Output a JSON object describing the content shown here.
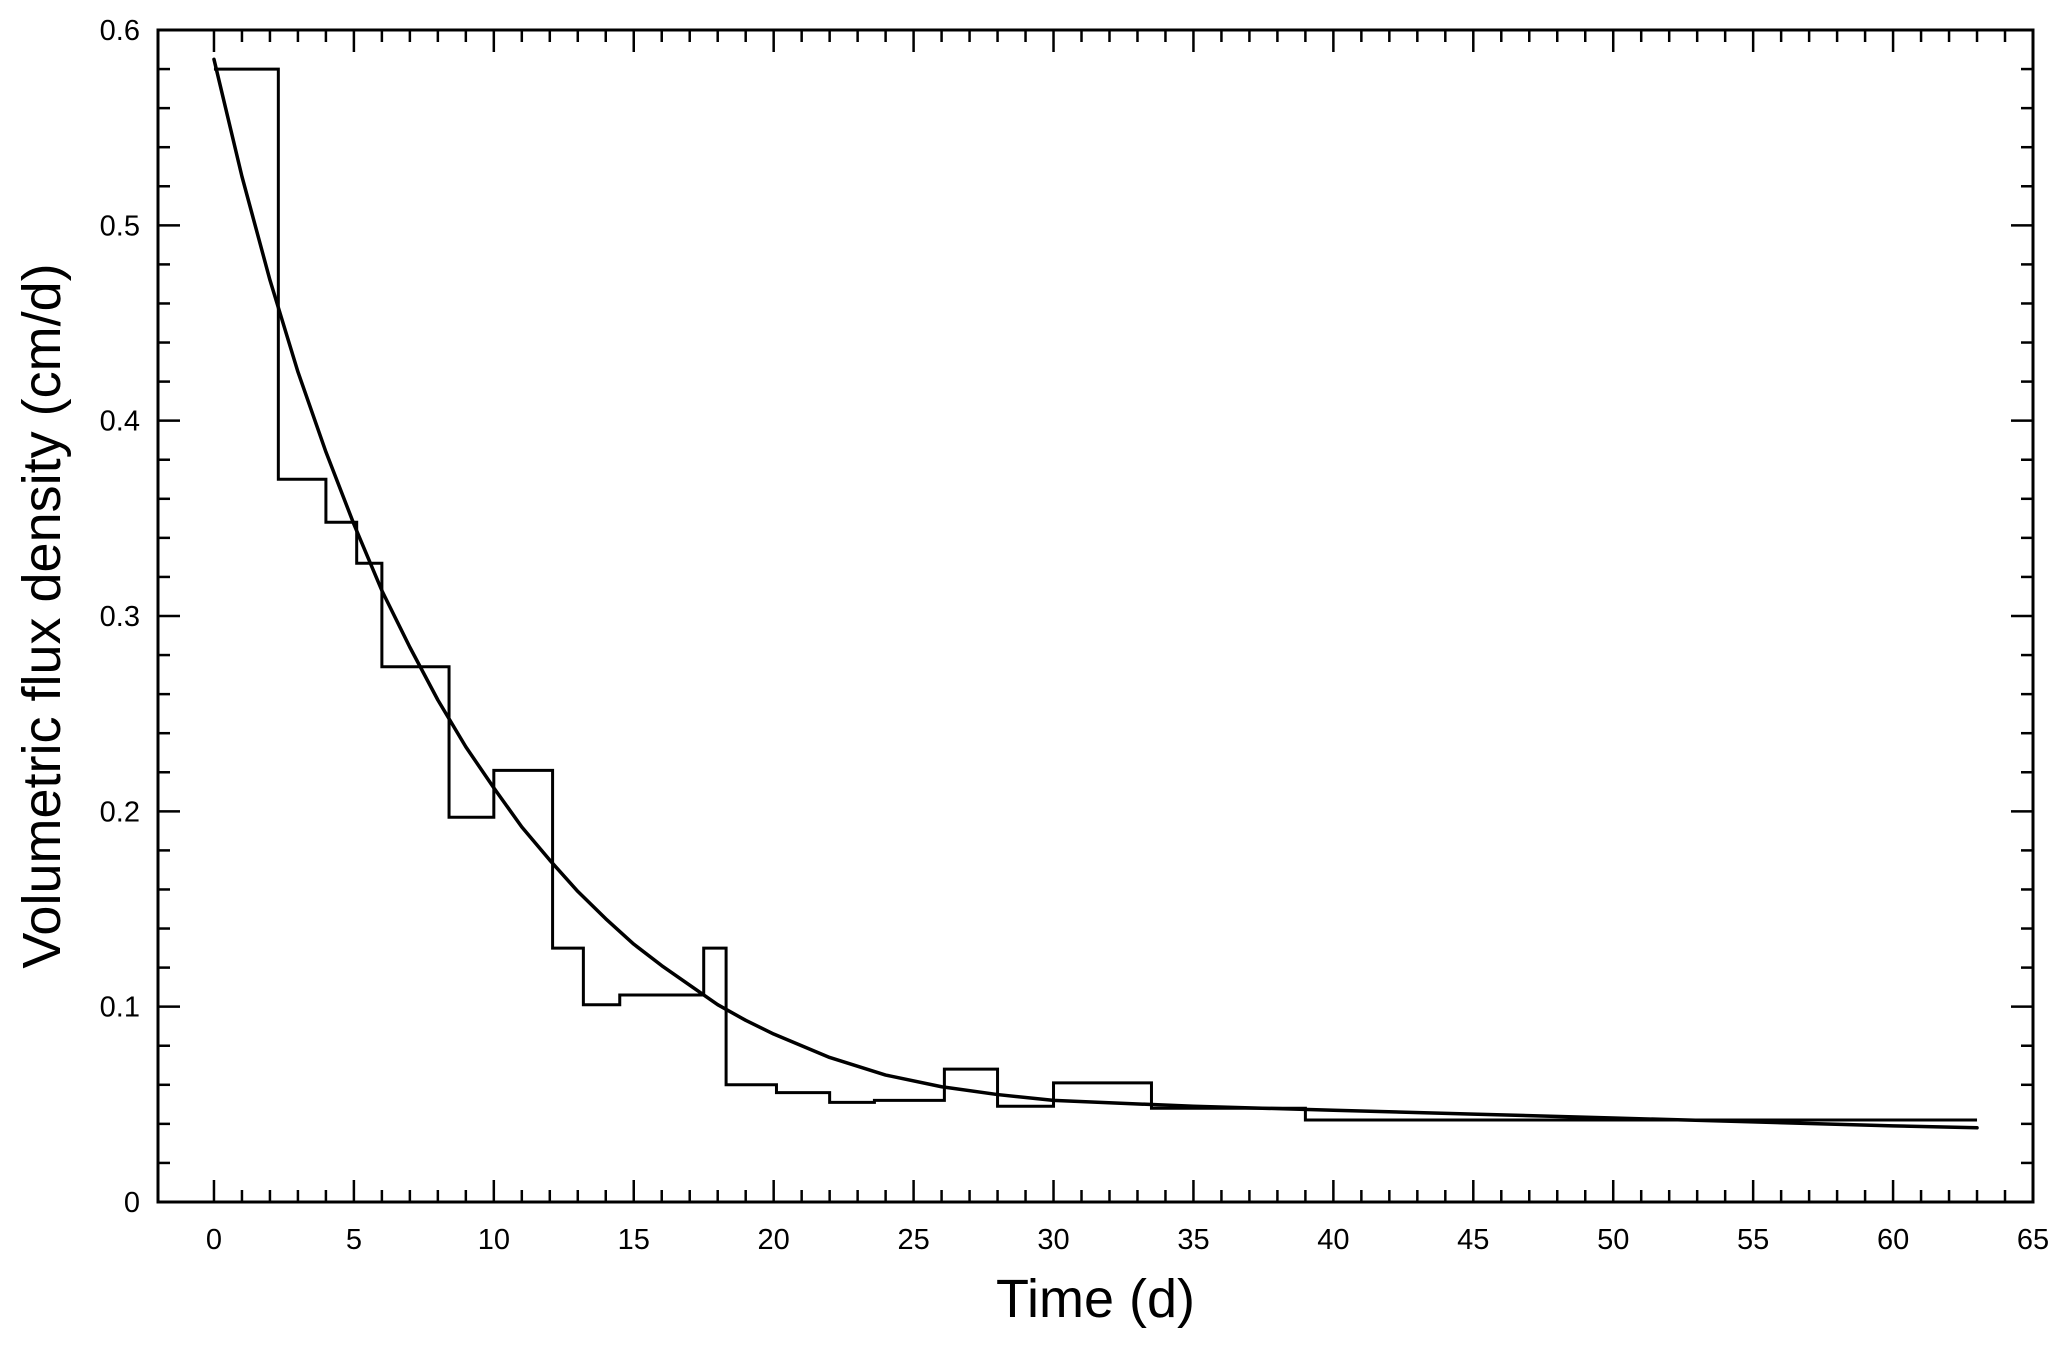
{
  "chart_data": {
    "type": "line",
    "title": "",
    "xlabel": "Time (d)",
    "ylabel": "Volumetric flux density (cm/d)",
    "xlim": [
      -2,
      65
    ],
    "ylim": [
      0,
      0.6
    ],
    "x_ticks": [
      0,
      5,
      10,
      15,
      20,
      25,
      30,
      35,
      40,
      45,
      50,
      55,
      60,
      65
    ],
    "x_tick_labels": [
      "0",
      "5",
      "10",
      "15",
      "20",
      "25",
      "30",
      "35",
      "40",
      "45",
      "50",
      "55",
      "60",
      "65"
    ],
    "x_minor_step": 1,
    "y_ticks": [
      0,
      0.1,
      0.2,
      0.3,
      0.4,
      0.5,
      0.6
    ],
    "y_tick_labels": [
      "0",
      "0.1",
      "0.2",
      "0.3",
      "0.4",
      "0.5",
      "0.6"
    ],
    "y_minor_step": 0.02,
    "grid": false,
    "legend": "none",
    "line_color": "#000000",
    "series": [
      {
        "style": "step",
        "edges": [
          0,
          2.3,
          4,
          5.1,
          6,
          8.4,
          10,
          12.1,
          13.2,
          14.5,
          17.5,
          18.3,
          20.1,
          22,
          23.6,
          26.1,
          28,
          30,
          33.5,
          39,
          63
        ],
        "values": [
          0.58,
          0.37,
          0.348,
          0.327,
          0.274,
          0.197,
          0.221,
          0.13,
          0.101,
          0.106,
          0.13,
          0.06,
          0.056,
          0.051,
          0.052,
          0.068,
          0.049,
          0.061,
          0.048,
          0.042
        ]
      },
      {
        "style": "smooth",
        "x": [
          0,
          1,
          2,
          3,
          4,
          5,
          6,
          7,
          8,
          9,
          10,
          11,
          12,
          13,
          14,
          15,
          16,
          17,
          18,
          19,
          20,
          22,
          24,
          26,
          28,
          30,
          35,
          40,
          45,
          50,
          55,
          60,
          63
        ],
        "y": [
          0.585,
          0.525,
          0.472,
          0.425,
          0.384,
          0.347,
          0.313,
          0.284,
          0.257,
          0.233,
          0.212,
          0.192,
          0.175,
          0.159,
          0.145,
          0.132,
          0.121,
          0.111,
          0.101,
          0.093,
          0.086,
          0.074,
          0.065,
          0.059,
          0.055,
          0.052,
          0.049,
          0.047,
          0.045,
          0.043,
          0.041,
          0.039,
          0.038
        ]
      }
    ]
  }
}
